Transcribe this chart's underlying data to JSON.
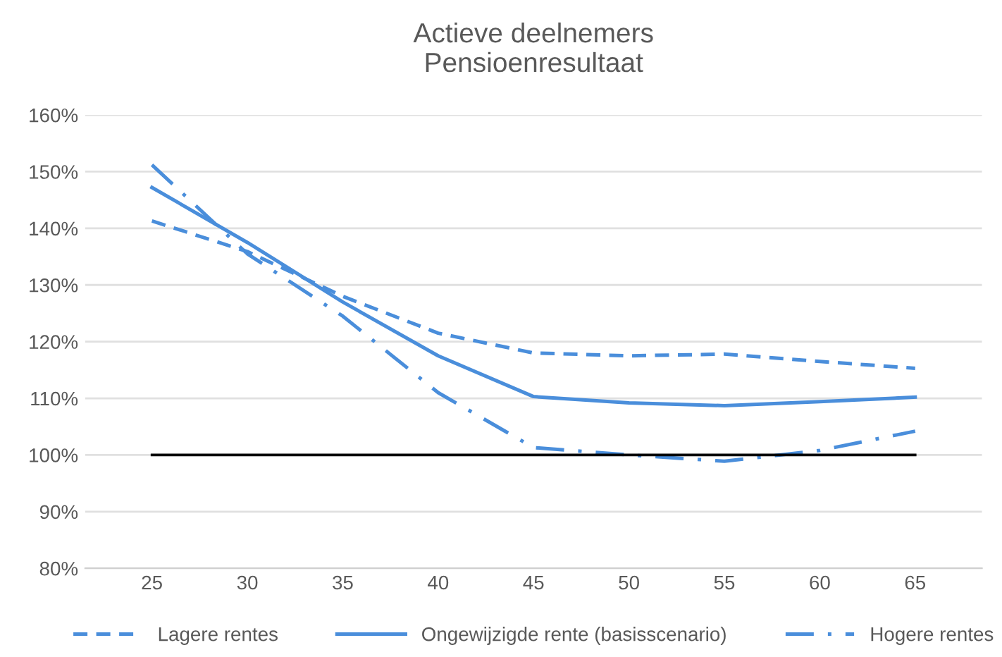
{
  "chart_data": {
    "type": "line",
    "title": "Actieve deelnemers\nPensioenresultaat",
    "categories": [
      "25",
      "30",
      "35",
      "40",
      "45",
      "50",
      "55",
      "60",
      "65"
    ],
    "series": [
      {
        "name": "Lagere rentes",
        "color": "#4a8edb",
        "line_style": "dashed",
        "values": [
          141.3,
          135.9,
          128,
          121.5,
          118,
          117.5,
          117.8,
          116.5,
          115.3
        ]
      },
      {
        "name": "Ongewijzigde rente (basisscenario)",
        "color": "#4a8edb",
        "line_style": "solid",
        "values": [
          147.2,
          137.5,
          127,
          117.5,
          110.3,
          109.2,
          108.7,
          109.4,
          110.2
        ]
      },
      {
        "name": "Hogere rentes",
        "color": "#4a8edb",
        "line_style": "dashdot",
        "values": [
          151.2,
          135.5,
          124.5,
          111,
          101.3,
          100,
          98.9,
          100.8,
          104.2
        ]
      }
    ],
    "ylim": [
      80,
      160
    ],
    "yticks": [
      {
        "value": 80,
        "label": "80%"
      },
      {
        "value": 90,
        "label": "90%"
      },
      {
        "value": 100,
        "label": "100%"
      },
      {
        "value": 110,
        "label": "110%"
      },
      {
        "value": 120,
        "label": "120%"
      },
      {
        "value": 130,
        "label": "130%"
      },
      {
        "value": 140,
        "label": "140%"
      },
      {
        "value": 150,
        "label": "150%"
      },
      {
        "value": 160,
        "label": "160%"
      }
    ],
    "ref_lines": [
      {
        "axis": "y",
        "value": 100,
        "color": "#000000"
      }
    ],
    "grid": "y",
    "legend": "bottom",
    "marker": "none"
  }
}
